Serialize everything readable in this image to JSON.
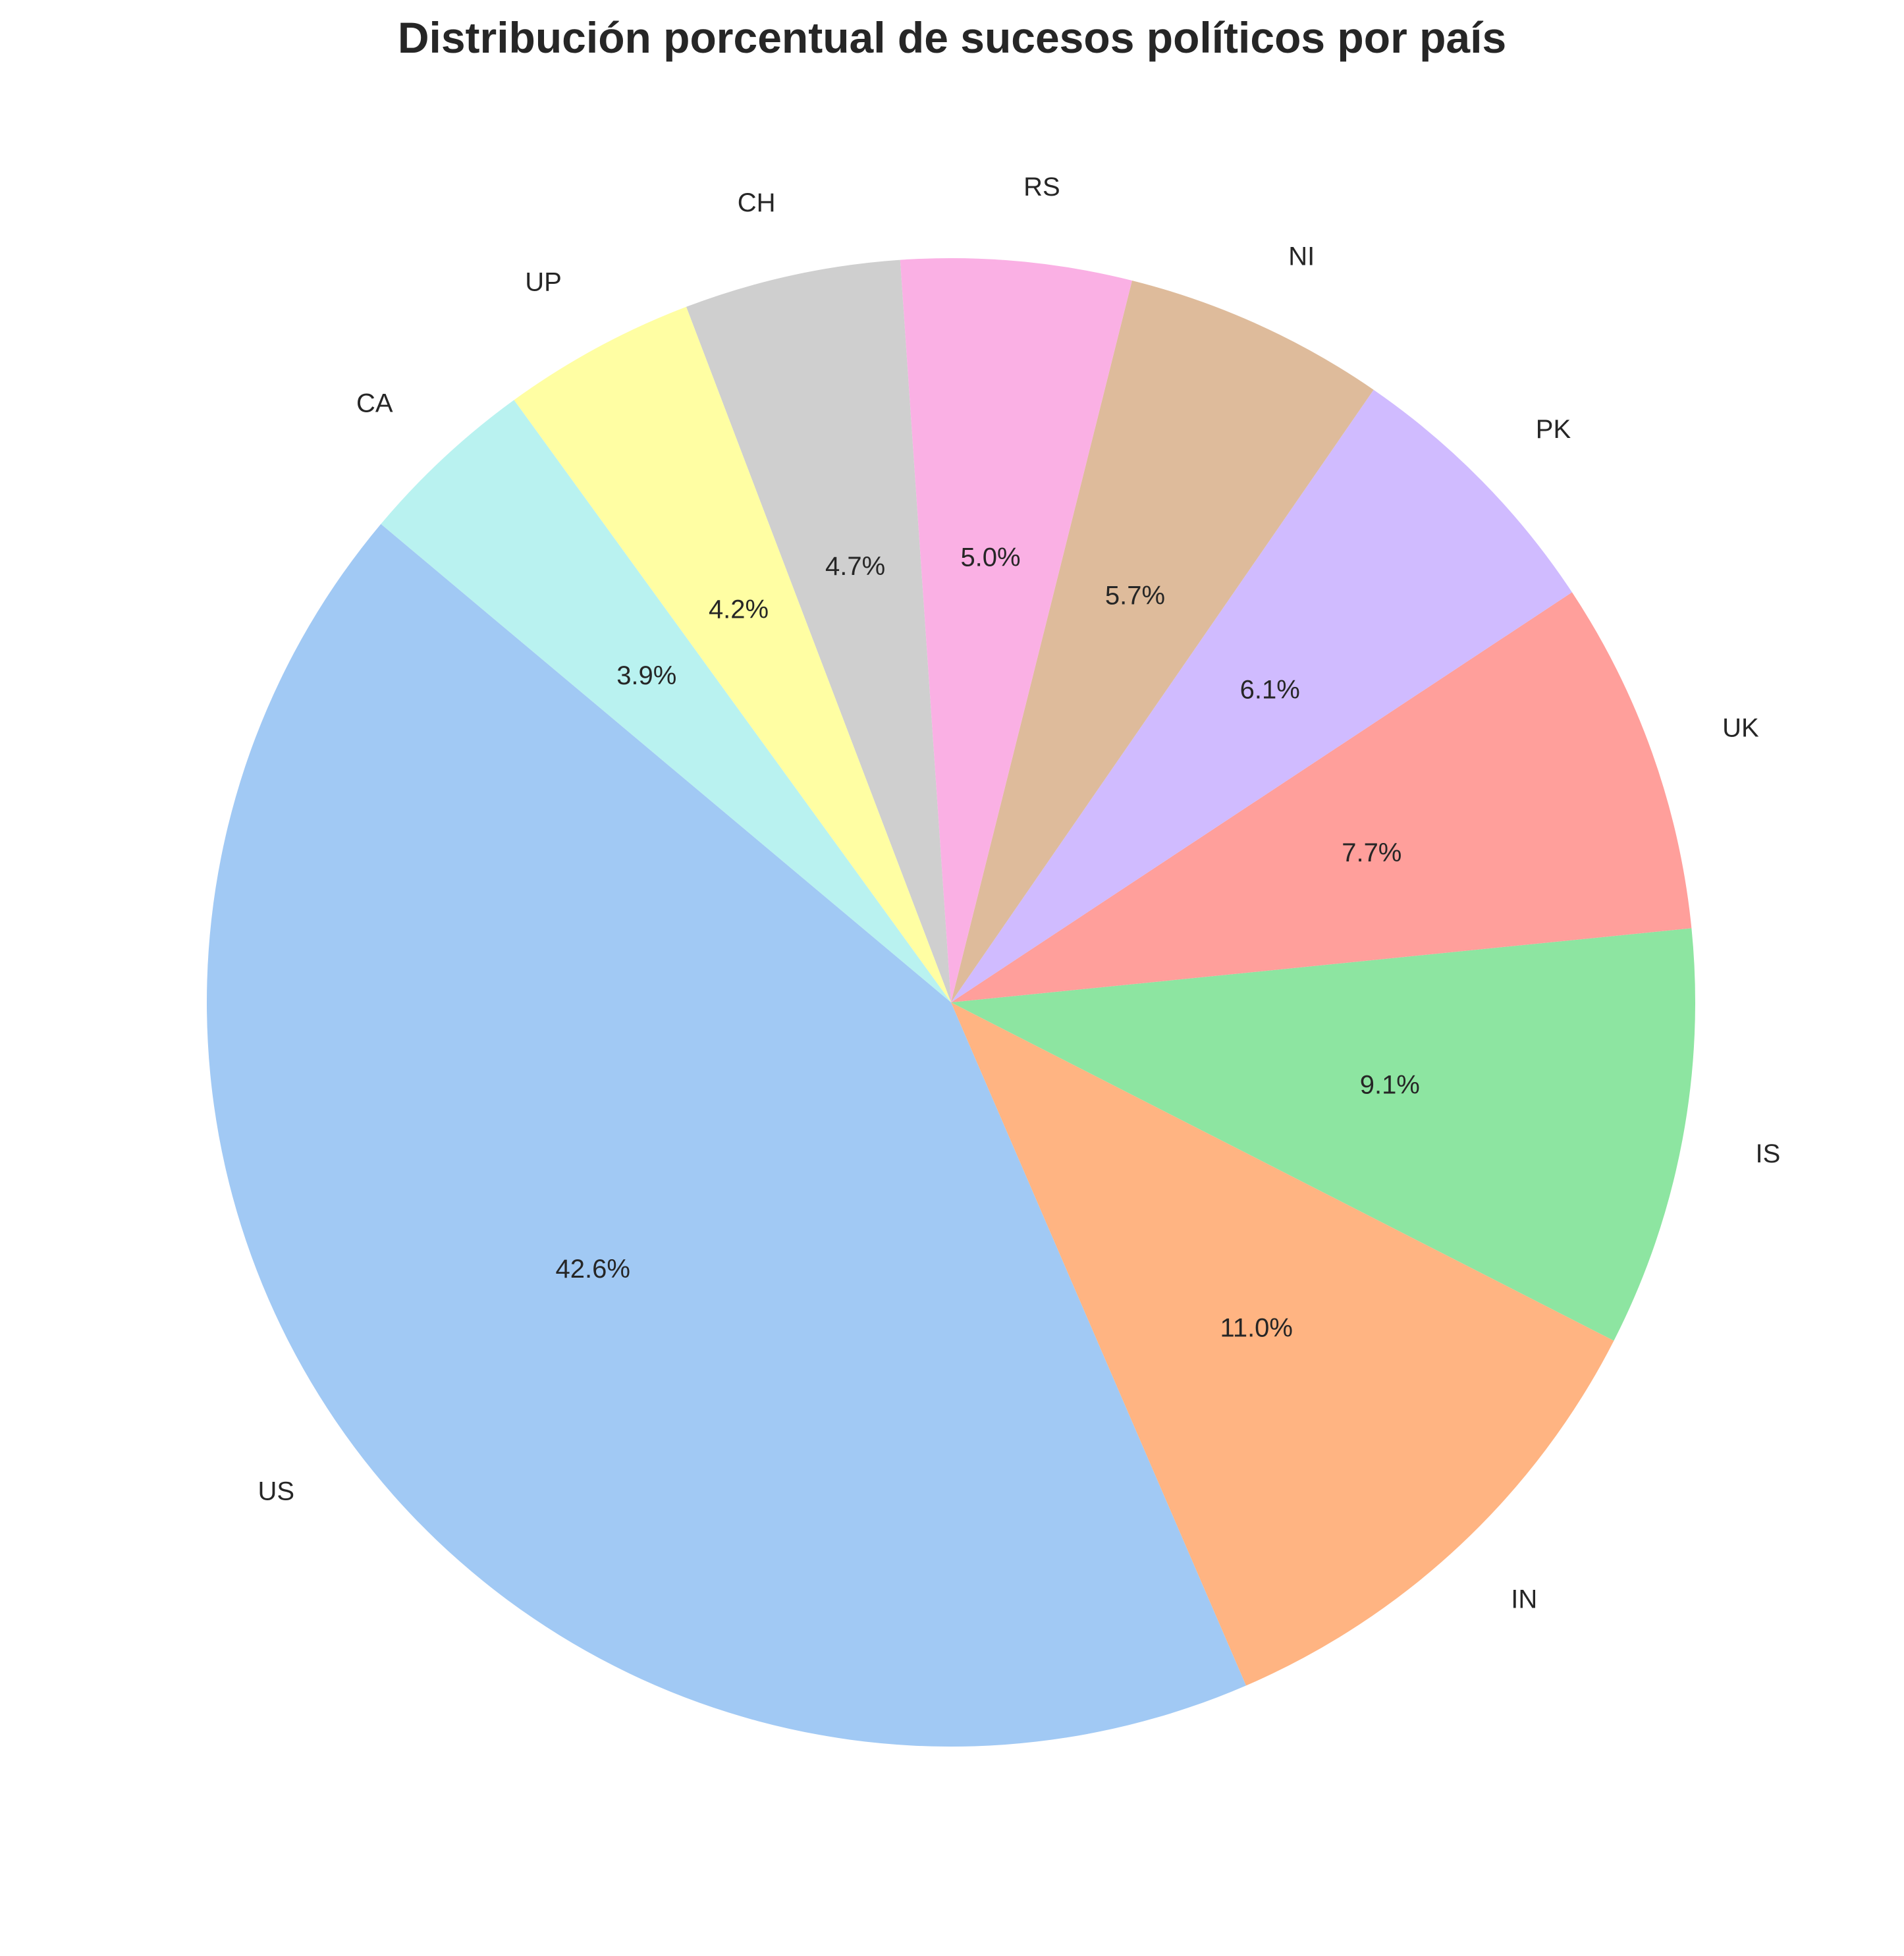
{
  "chart_data": {
    "type": "pie",
    "title": "Distribución porcentual de sucesos políticos por país",
    "labels": [
      "US",
      "IN",
      "IS",
      "UK",
      "PK",
      "NI",
      "RS",
      "CH",
      "UP",
      "CA"
    ],
    "values": [
      42.6,
      11.0,
      9.1,
      7.7,
      6.1,
      5.7,
      5.0,
      4.7,
      4.2,
      3.9
    ],
    "value_labels": [
      "42.6%",
      "11.0%",
      "9.1%",
      "7.7%",
      "6.1%",
      "5.7%",
      "5.0%",
      "4.7%",
      "4.2%",
      "3.9%"
    ],
    "colors": [
      "#a1c9f4",
      "#ffb482",
      "#8de5a1",
      "#ff9f9b",
      "#d0bbff",
      "#debb9b",
      "#fab0e4",
      "#cfcfcf",
      "#fffea3",
      "#b9f2f0"
    ],
    "start_angle_deg": 140,
    "direction": "counterclockwise",
    "legend": "none"
  }
}
